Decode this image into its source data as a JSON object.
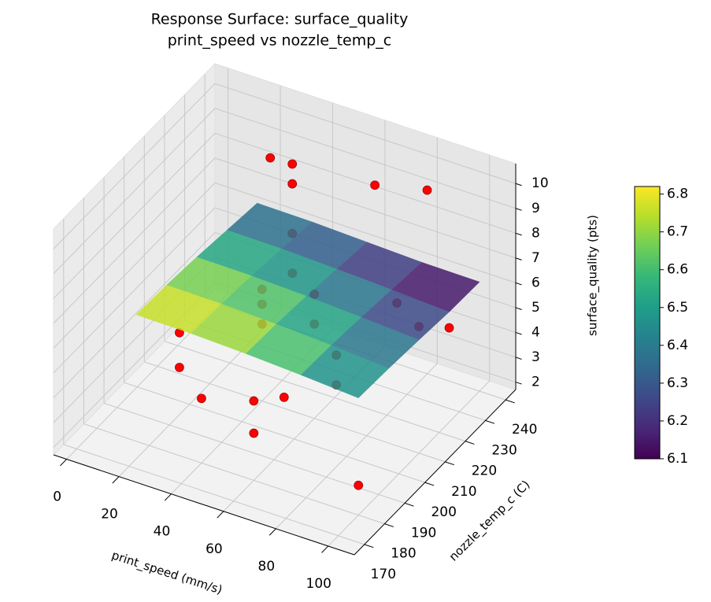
{
  "chart_data": {
    "type": "surface3d",
    "title": "Response Surface: surface_quality",
    "subtitle": "print_speed vs nozzle_temp_c",
    "x_label": "print_speed (mm/s)",
    "y_label": "nozzle_temp_c (C)",
    "z_label": "surface_quality (pts)",
    "xlim": [
      -5,
      110
    ],
    "xticks": [
      0,
      20,
      40,
      60,
      80,
      100
    ],
    "ylim": [
      165,
      245
    ],
    "yticks": [
      170,
      180,
      190,
      200,
      210,
      220,
      230,
      240
    ],
    "zlim": [
      1.7,
      10.8
    ],
    "zticks": [
      2,
      3,
      4,
      5,
      6,
      7,
      8,
      9,
      10
    ],
    "grid": true,
    "surface": {
      "x": [
        15,
        36,
        57,
        78,
        100
      ],
      "y": [
        180,
        195,
        210,
        225,
        240
      ],
      "z": [
        [
          6.8,
          6.78,
          6.7,
          6.58,
          6.42
        ],
        [
          6.74,
          6.72,
          6.64,
          6.52,
          6.36
        ],
        [
          6.62,
          6.6,
          6.52,
          6.4,
          6.26
        ],
        [
          6.46,
          6.44,
          6.36,
          6.26,
          6.14
        ],
        [
          6.3,
          6.28,
          6.2,
          6.12,
          6.1
        ]
      ],
      "opacity": 0.85
    },
    "colormap": [
      "#440154",
      "#482878",
      "#3e4989",
      "#31688e",
      "#26828e",
      "#1f9e89",
      "#35b779",
      "#6ece58",
      "#b5de2b",
      "#fde725"
    ],
    "clim": [
      6.1,
      6.82
    ],
    "cticks": [
      6.1,
      6.2,
      6.3,
      6.4,
      6.5,
      6.6,
      6.7,
      6.8
    ],
    "points": {
      "color": "#ff0000",
      "x": [
        20,
        20,
        20,
        40,
        40,
        40,
        40,
        40,
        40,
        40,
        60,
        60,
        60,
        60,
        60,
        80,
        80,
        80,
        80,
        100,
        100,
        100,
        60,
        40
      ],
      "y": [
        195,
        195,
        240,
        225,
        225,
        225,
        225,
        210,
        210,
        210,
        180,
        180,
        210,
        210,
        240,
        195,
        195,
        240,
        225,
        225,
        180,
        210,
        195,
        180
      ],
      "z": [
        5.0,
        3.6,
        8.3,
        10.0,
        9.2,
        7.2,
        5.6,
        6.2,
        5.6,
        4.8,
        4.9,
        3.6,
        6.7,
        5.5,
        8.6,
        6.2,
        5.0,
        9.1,
        5.8,
        5.5,
        2.9,
        6.8,
        3.8,
        4.3
      ]
    }
  }
}
